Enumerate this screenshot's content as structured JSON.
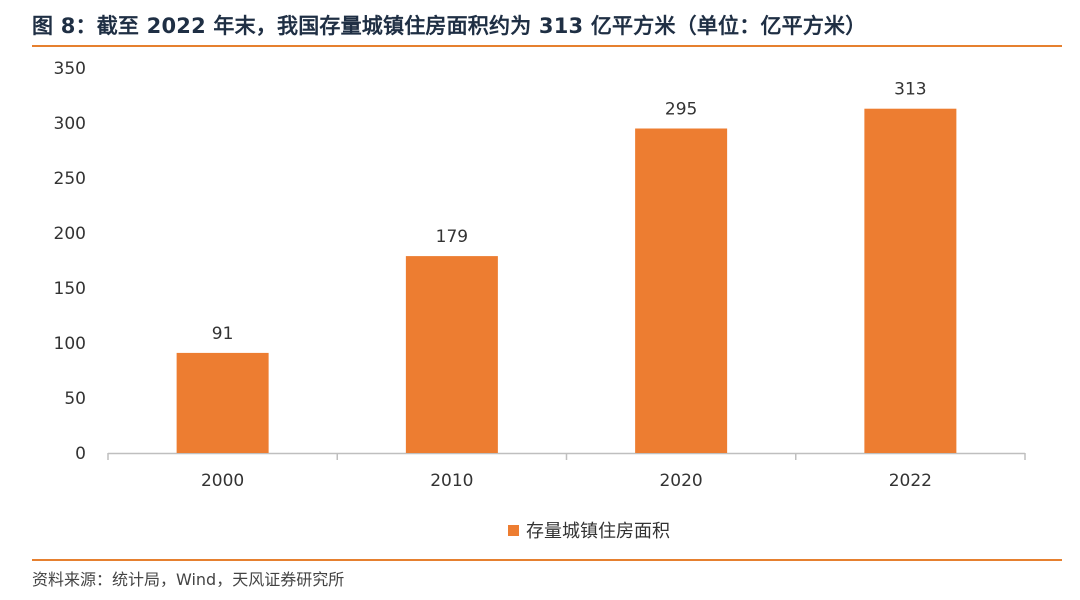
{
  "figure": {
    "title": "图 8：截至 2022 年末，我国存量城镇住房面积约为 313 亿平方米（单位：亿平方米）",
    "source": "资料来源：统计局，Wind，天风证券研究所"
  },
  "colors": {
    "bar": "#ed7d31",
    "rule": "#e6802f",
    "axis": "#bfbfbf"
  },
  "chart_data": {
    "type": "bar",
    "categories": [
      "2000",
      "2010",
      "2020",
      "2022"
    ],
    "series": [
      {
        "name": "存量城镇住房面积",
        "values": [
          91,
          179,
          295,
          313
        ]
      }
    ],
    "yticks": [
      0,
      50,
      100,
      150,
      200,
      250,
      300,
      350
    ],
    "ylim": [
      0,
      350
    ],
    "grid": false,
    "legend_position": "bottom",
    "data_labels": [
      "91",
      "179",
      "295",
      "313"
    ]
  }
}
